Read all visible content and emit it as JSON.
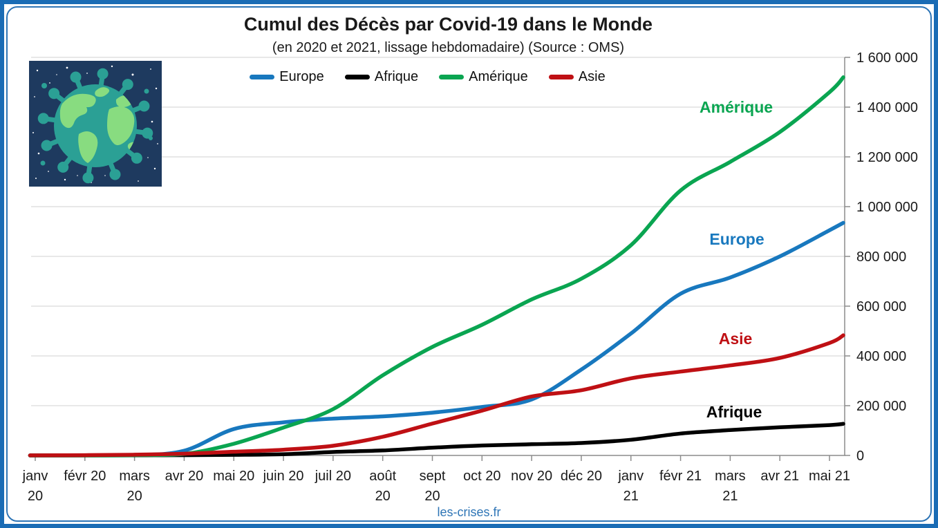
{
  "watermark": "les-crises.fr",
  "logo": {
    "icon": "virus-globe-icon"
  },
  "colors": {
    "frame": "#1a6cb5",
    "accent": "#2e75b6",
    "grid": "#d9d9d9",
    "axis": "#8c8c8c"
  },
  "chart_data": {
    "type": "line",
    "title": "Cumul des Décès par Covid-19 dans le Monde",
    "subtitle": "(en 2020 et 2021, lissage hebdomadaire) (Source : OMS)",
    "xlabel": "",
    "ylabel": "",
    "ylim": [
      0,
      1600000
    ],
    "grid": "horizontal",
    "legend_position": "top-center",
    "y_ticks": [
      0,
      200000,
      400000,
      600000,
      800000,
      1000000,
      1200000,
      1400000,
      1600000
    ],
    "y_tick_labels": [
      "0",
      "200 000",
      "400 000",
      "600 000",
      "800 000",
      "1 000 000",
      "1 200 000",
      "1 400 000",
      "1 600 000"
    ],
    "x_tick_labels": [
      [
        "janv",
        "20"
      ],
      [
        "févr 20"
      ],
      [
        "mars",
        "20"
      ],
      [
        "avr 20"
      ],
      [
        "mai 20"
      ],
      [
        "juin 20"
      ],
      [
        "juil 20"
      ],
      [
        "août",
        "20"
      ],
      [
        "sept",
        "20"
      ],
      [
        "oct 20"
      ],
      [
        "nov 20"
      ],
      [
        "déc 20"
      ],
      [
        "janv",
        "21"
      ],
      [
        "févr 21"
      ],
      [
        "mars",
        "21"
      ],
      [
        "avr 21"
      ],
      [
        "mai 21"
      ]
    ],
    "series": [
      {
        "name": "Europe",
        "color": "#1878be",
        "values": [
          0,
          500,
          1500,
          19000,
          106000,
          133000,
          148000,
          157000,
          172000,
          195000,
          225000,
          345000,
          490000,
          650000,
          715000,
          800000,
          905000
        ],
        "end_value": 935000,
        "label_pos": {
          "x": 1066,
          "y": 354
        }
      },
      {
        "name": "Afrique",
        "color": "#000000",
        "values": [
          0,
          0,
          200,
          1000,
          2500,
          5000,
          14000,
          20000,
          31000,
          40000,
          45000,
          50000,
          63000,
          88000,
          102000,
          113000,
          122000
        ],
        "end_value": 127000,
        "label_pos": {
          "x": 1062,
          "y": 604
        }
      },
      {
        "name": "Amérique",
        "color": "#0aa551",
        "values": [
          0,
          0,
          1000,
          6000,
          47000,
          112000,
          186000,
          322000,
          436000,
          525000,
          627000,
          710000,
          845000,
          1065000,
          1180000,
          1300000,
          1460000
        ],
        "end_value": 1520000,
        "label_pos": {
          "x": 1065,
          "y": 163
        }
      },
      {
        "name": "Asie",
        "color": "#bf1014",
        "values": [
          300,
          1000,
          3000,
          7000,
          15000,
          23000,
          39000,
          75000,
          128000,
          180000,
          237000,
          262000,
          310000,
          337000,
          362000,
          392000,
          452000
        ],
        "end_value": 483000,
        "label_pos": {
          "x": 1064,
          "y": 498
        }
      }
    ]
  }
}
